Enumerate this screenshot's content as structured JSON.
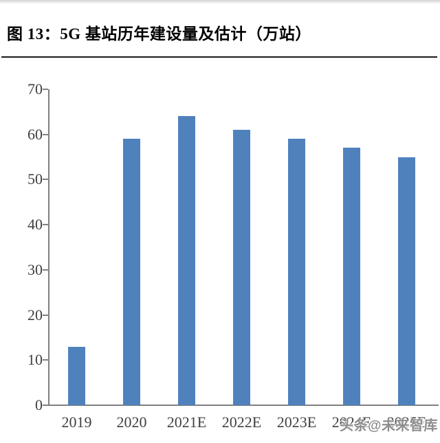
{
  "header": {
    "title": "图 13：5G 基站历年建设量及估计（万站）"
  },
  "chart_data": {
    "type": "bar",
    "title": "图 13：5G 基站历年建设量及估计（万站）",
    "categories": [
      "2019",
      "2020",
      "2021E",
      "2022E",
      "2023E",
      "2024E",
      "2025E"
    ],
    "values": [
      13,
      59,
      64,
      61,
      59,
      57,
      55
    ],
    "xlabel": "",
    "ylabel": "",
    "ylim": [
      0,
      70
    ],
    "yticks": [
      0,
      10,
      20,
      30,
      40,
      50,
      60,
      70
    ],
    "grid": false,
    "legend": "none",
    "bar_color": "#4f81bd",
    "axis_color": "#808080",
    "tick_label_color": "#3f3f3f"
  },
  "watermark": {
    "text": "头条@未来智库"
  },
  "colors": {
    "divider": "#1a1a1a",
    "background": "#ffffff",
    "title_text": "#000000",
    "watermark_gray": "#8d8d8d"
  }
}
